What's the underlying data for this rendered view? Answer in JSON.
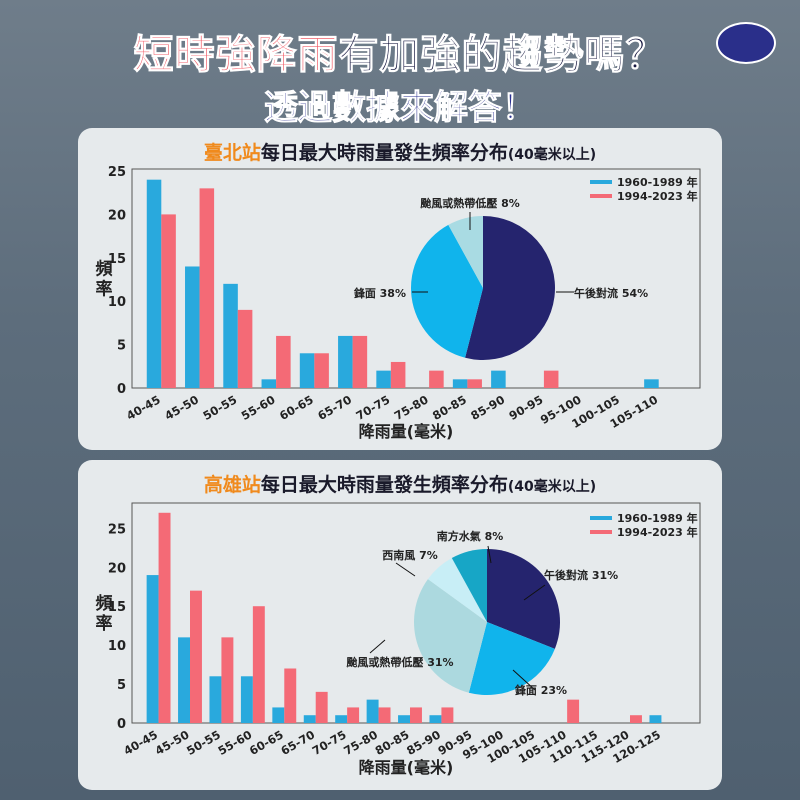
{
  "header": {
    "title_highlight": "短時強降雨",
    "title_rest": "有加強的趨勢嗎？",
    "subtitle": "透過數據來解答！"
  },
  "colors": {
    "early": "#29a9dd",
    "late": "#f46a76"
  },
  "chart_data": [
    {
      "type": "bar",
      "station": "臺北站",
      "title": "每日最大時雨量發生頻率分布",
      "title_note": "(40毫米以上)",
      "xlabel": "降雨量(毫米)",
      "ylabel": "頻率",
      "ylim": [
        0,
        25
      ],
      "yticks": [
        0,
        5,
        10,
        15,
        20,
        25
      ],
      "categories": [
        "40-45",
        "45-50",
        "50-55",
        "55-60",
        "60-65",
        "65-70",
        "70-75",
        "75-80",
        "80-85",
        "85-90",
        "90-95",
        "95-100",
        "100-105",
        "105-110"
      ],
      "series": [
        {
          "name": "1960-1989 年",
          "values": [
            24,
            14,
            12,
            1,
            4,
            6,
            2,
            0,
            1,
            2,
            0,
            0,
            0,
            1
          ]
        },
        {
          "name": "1994-2023 年",
          "values": [
            20,
            23,
            9,
            6,
            4,
            6,
            3,
            2,
            1,
            0,
            2,
            0,
            0,
            0
          ]
        }
      ],
      "legend": "top-right",
      "pie": {
        "slices": [
          {
            "label": "午後對流",
            "pct": 54,
            "color": "#25246e"
          },
          {
            "label": "鋒面",
            "pct": 38,
            "color": "#10b4ec"
          },
          {
            "label": "颱風或熱帶低壓",
            "pct": 8,
            "color": "#a9dbe3"
          }
        ],
        "labels": [
          "午後對流 54%",
          "鋒面 38%",
          "颱風或熱帶低壓 8%"
        ]
      }
    },
    {
      "type": "bar",
      "station": "高雄站",
      "title": "每日最大時雨量發生頻率分布",
      "title_note": "(40毫米以上)",
      "xlabel": "降雨量(毫米)",
      "ylabel": "頻率",
      "ylim": [
        0,
        28
      ],
      "yticks": [
        0,
        5,
        10,
        15,
        20,
        25
      ],
      "categories": [
        "40-45",
        "45-50",
        "50-55",
        "55-60",
        "60-65",
        "65-70",
        "70-75",
        "75-80",
        "80-85",
        "85-90",
        "90-95",
        "95-100",
        "100-105",
        "105-110",
        "110-115",
        "115-120",
        "120-125"
      ],
      "series": [
        {
          "name": "1960-1989 年",
          "values": [
            19,
            11,
            6,
            6,
            2,
            1,
            1,
            3,
            1,
            1,
            0,
            0,
            0,
            0,
            0,
            0,
            1
          ]
        },
        {
          "name": "1994-2023 年",
          "values": [
            27,
            17,
            11,
            15,
            7,
            4,
            2,
            2,
            2,
            2,
            0,
            0,
            0,
            3,
            0,
            1,
            0
          ]
        }
      ],
      "legend": "top-right",
      "pie": {
        "slices": [
          {
            "label": "午後對流",
            "pct": 31,
            "color": "#25246e"
          },
          {
            "label": "鋒面",
            "pct": 23,
            "color": "#10b4ec"
          },
          {
            "label": "颱風或熱帶低壓",
            "pct": 31,
            "color": "#acd9df"
          },
          {
            "label": "西南風",
            "pct": 7,
            "color": "#c8eef6"
          },
          {
            "label": "南方水氣",
            "pct": 8,
            "color": "#17a6c6"
          }
        ],
        "labels": [
          "午後對流 31%",
          "鋒面 23%",
          "颱風或熱帶低壓 31%",
          "西南風 7%",
          "南方水氣 8%"
        ]
      }
    }
  ]
}
